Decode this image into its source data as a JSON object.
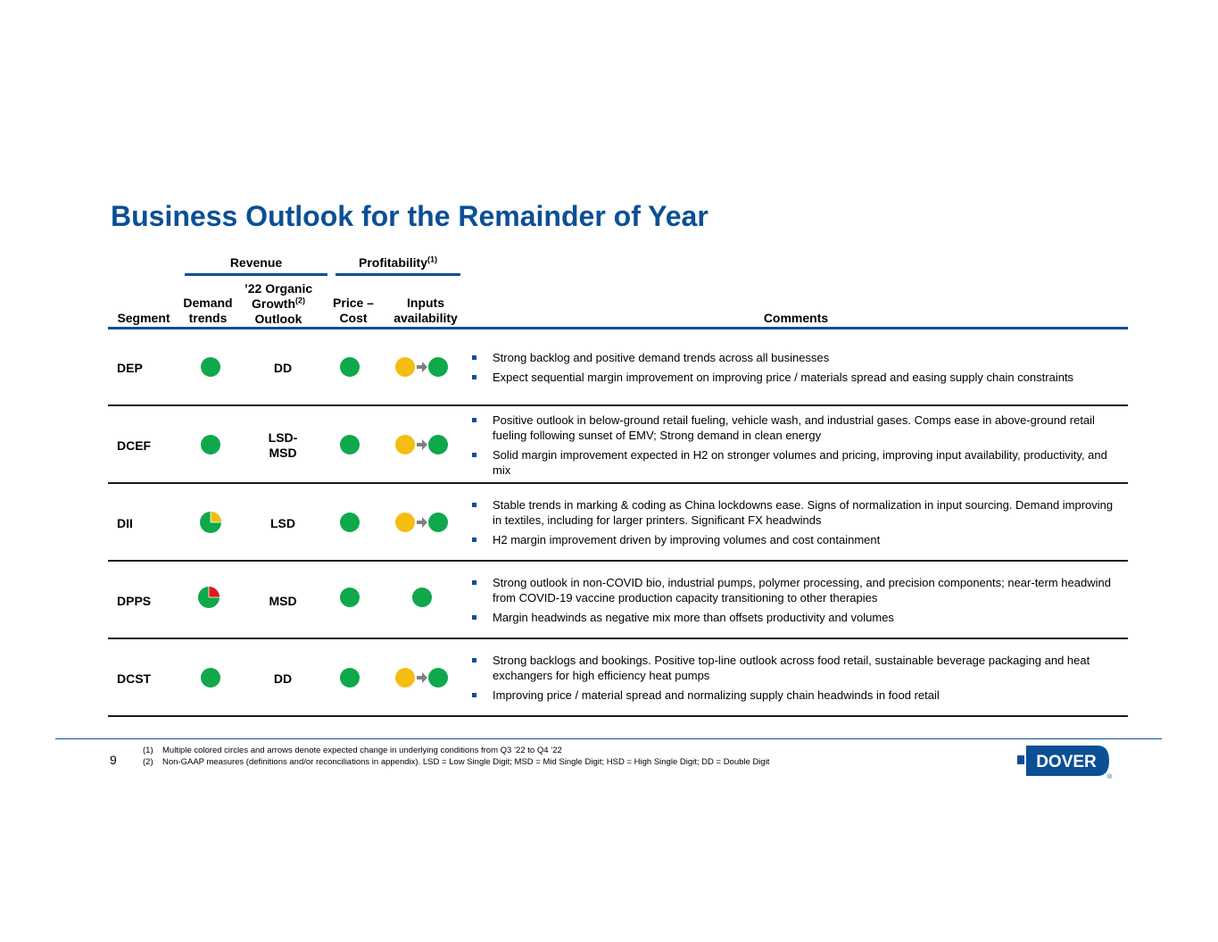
{
  "title": "Business Outlook for the Remainder of Year",
  "groups": {
    "revenue": "Revenue",
    "profitability": "Profitability",
    "profitability_sup": "(1)"
  },
  "columns": {
    "segment": "Segment",
    "demand_1": "Demand",
    "demand_2": "trends",
    "organic_1": "’22 Organic",
    "organic_2": "Growth",
    "organic_sup": "(2)",
    "organic_3": "Outlook",
    "price_1": "Price –",
    "price_2": "Cost",
    "inputs_1": "Inputs",
    "inputs_2": "availability",
    "comments": "Comments"
  },
  "colors": {
    "brand": "#0b4f96",
    "green": "#0fa84a",
    "yellow": "#f5bd12",
    "red": "#e4161e",
    "arrow": "#7f7f7f"
  },
  "rows": [
    {
      "segment": "DEP",
      "demand": "green",
      "outlook_1": "DD",
      "outlook_2": "",
      "price_cost": "green",
      "inputs": "yellow-to-green",
      "comments": [
        "Strong backlog and positive demand trends across all businesses",
        "Expect sequential margin improvement on improving price / materials spread and easing supply chain constraints"
      ]
    },
    {
      "segment": "DCEF",
      "demand": "green",
      "outlook_1": "LSD-",
      "outlook_2": "MSD",
      "price_cost": "green",
      "inputs": "yellow-to-green",
      "comments": [
        "Positive outlook in below-ground retail fueling, vehicle wash, and industrial gases. Comps ease in above-ground retail fueling following sunset of EMV; Strong demand in clean energy",
        "Solid margin improvement expected in H2 on stronger volumes and pricing, improving input availability, productivity, and mix"
      ]
    },
    {
      "segment": "DII",
      "demand": "mostly green, yellow quarter",
      "outlook_1": "LSD",
      "outlook_2": "",
      "price_cost": "green",
      "inputs": "yellow-to-green",
      "comments": [
        "Stable trends in marking & coding as China lockdowns ease. Signs of normalization in input sourcing. Demand improving in textiles, including for larger printers. Significant FX headwinds",
        "H2 margin improvement driven by improving volumes and cost containment"
      ]
    },
    {
      "segment": "DPPS",
      "demand": "mostly green, red quarter",
      "outlook_1": "MSD",
      "outlook_2": "",
      "price_cost": "green",
      "inputs": "green",
      "comments": [
        "Strong outlook in non-COVID bio, industrial pumps, polymer processing, and precision components; near-term headwind from COVID-19 vaccine production capacity transitioning to other therapies",
        "Margin headwinds as negative mix more than offsets productivity and volumes"
      ]
    },
    {
      "segment": "DCST",
      "demand": "green",
      "outlook_1": "DD",
      "outlook_2": "",
      "price_cost": "green",
      "inputs": "yellow-to-green",
      "comments": [
        "Strong backlogs and bookings. Positive top-line outlook across food retail, sustainable beverage packaging and heat exchangers for high efficiency heat pumps",
        "Improving price / material spread and normalizing supply chain headwinds in food retail"
      ]
    }
  ],
  "footer": {
    "page_number": "9",
    "footnotes": [
      {
        "marker": "(1)",
        "text": "Multiple colored circles and arrows denote expected change in underlying conditions from Q3 ’22 to Q4 ’22"
      },
      {
        "marker": "(2)",
        "text": "Non-GAAP measures (definitions and/or reconciliations in appendix). LSD = Low Single Digit; MSD = Mid Single Digit; HSD = High Single Digit; DD = Double Digit"
      }
    ],
    "logo_text": "DOVER",
    "logo_mark": "®"
  }
}
